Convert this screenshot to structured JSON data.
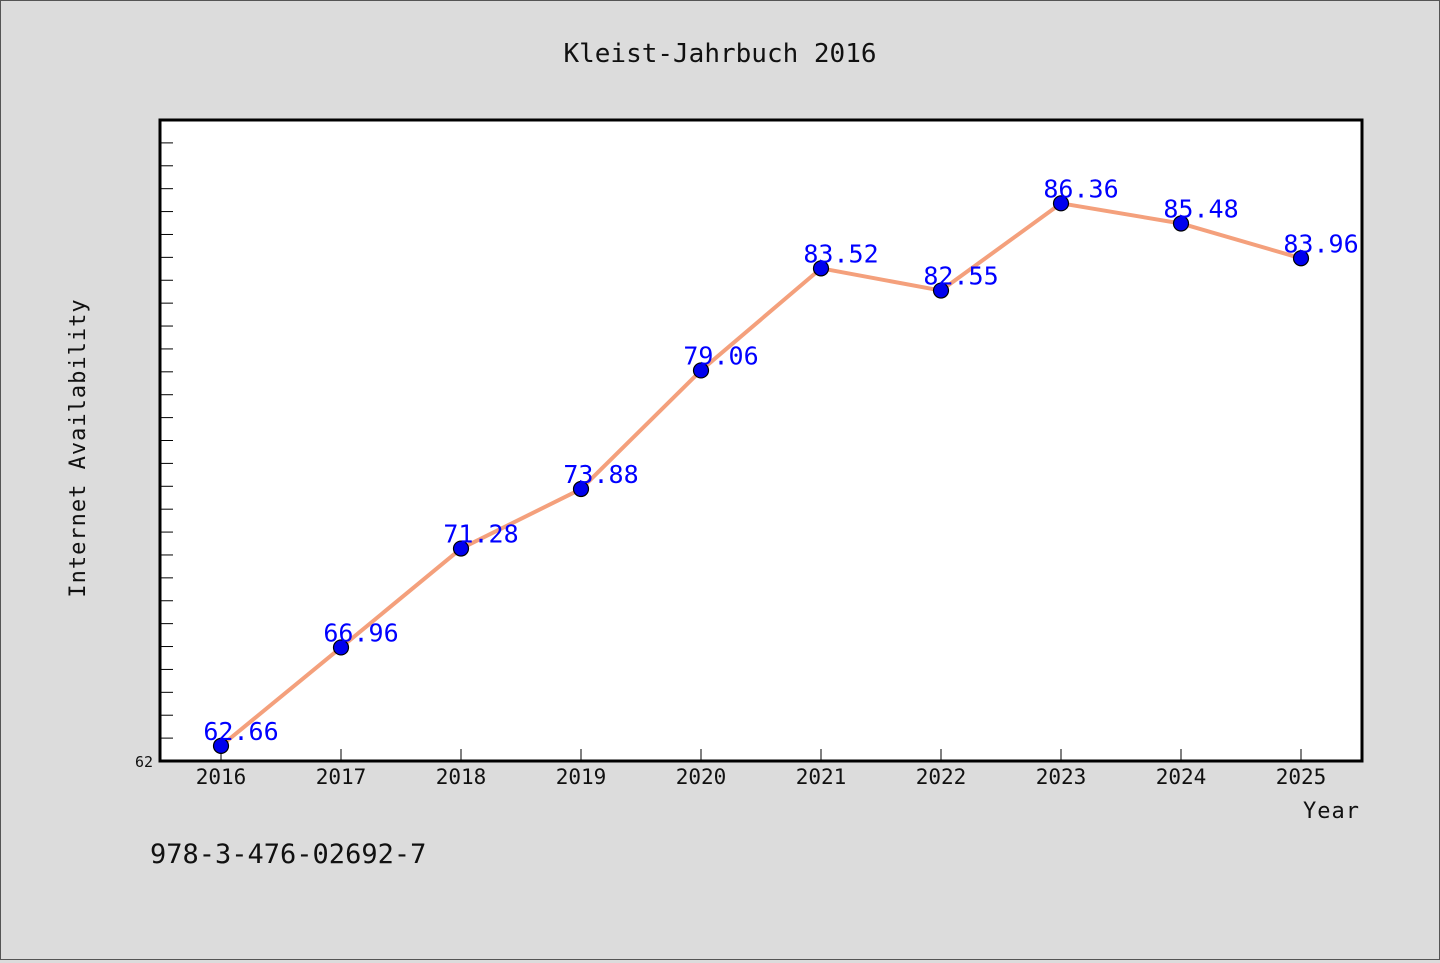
{
  "chart_data": {
    "type": "line",
    "title": "Kleist-Jahrbuch 2016",
    "xlabel": "Year",
    "ylabel": "Internet Availability",
    "x": [
      2016,
      2017,
      2018,
      2019,
      2020,
      2021,
      2022,
      2023,
      2024,
      2025
    ],
    "series": [
      {
        "values": [
          62.66,
          66.96,
          71.28,
          73.88,
          79.06,
          83.52,
          82.55,
          86.36,
          85.48,
          83.96
        ],
        "color": "#f4a07c",
        "marker_color": "#0000ee"
      }
    ],
    "data_labels": [
      "62.66",
      "66.96",
      "71.28",
      "73.88",
      "79.06",
      "83.52",
      "82.55",
      "86.36",
      "85.48",
      "83.96"
    ],
    "ylim": [
      62,
      90
    ],
    "y_tick_labels": [
      "62"
    ],
    "grid": false,
    "legend": "none",
    "label_color": "#0000ff"
  },
  "footer": {
    "isbn": "978-3-476-02692-7"
  }
}
